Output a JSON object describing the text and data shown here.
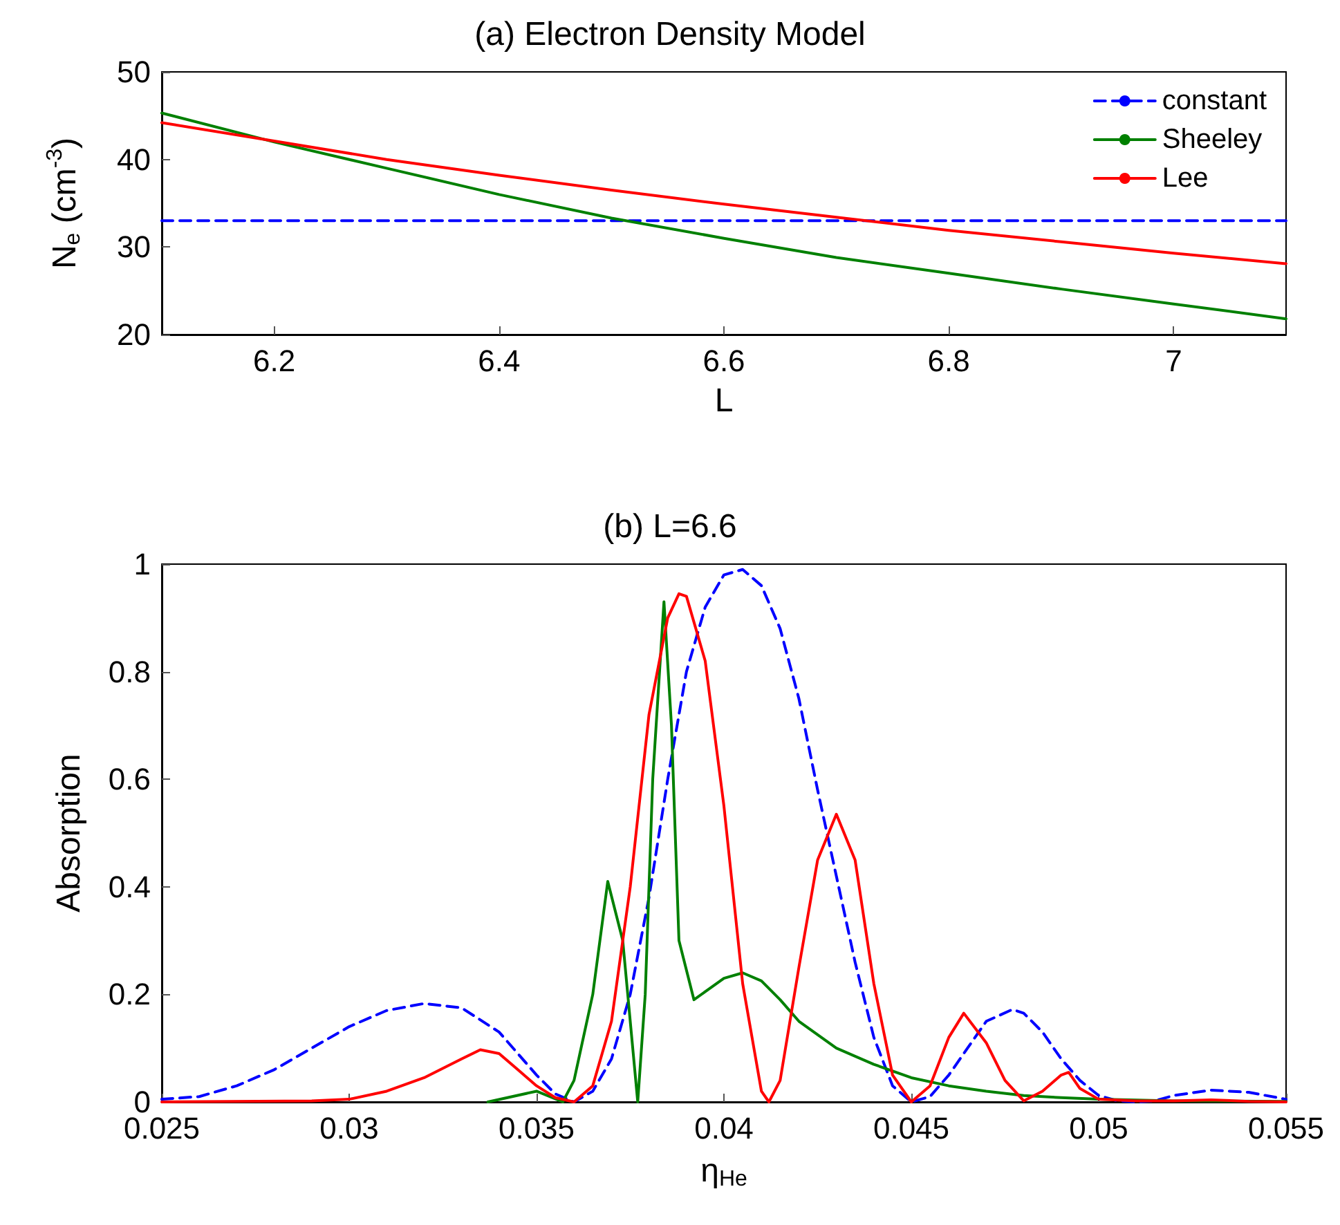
{
  "chart_data": [
    {
      "type": "line",
      "title": "(a) Electron Density Model",
      "xlabel": "L",
      "ylabel": "N$_{e}$ (cm$^{-3}$)",
      "x": [
        6.1,
        6.2,
        6.3,
        6.4,
        6.5,
        6.6,
        6.7,
        6.8,
        6.9,
        7.0,
        7.1
      ],
      "series": [
        {
          "name": "constant",
          "color": "#0000ff",
          "line_style": "dashed",
          "values": [
            33,
            33,
            33,
            33,
            33,
            33,
            33,
            33,
            33,
            33,
            33
          ]
        },
        {
          "name": "Sheeley",
          "color": "#008000",
          "values": [
            45.3,
            42.0,
            39.0,
            36.0,
            33.3,
            31.0,
            28.8,
            27.0,
            25.2,
            23.5,
            21.8
          ]
        },
        {
          "name": "Lee",
          "color": "#ff0000",
          "values": [
            44.2,
            42.1,
            40.0,
            38.2,
            36.5,
            34.9,
            33.4,
            31.9,
            30.6,
            29.3,
            28.1
          ]
        }
      ],
      "xlim": [
        6.1,
        7.1
      ],
      "xticks": [
        6.2,
        6.4,
        6.6,
        6.8,
        7
      ],
      "ylim": [
        20,
        50
      ],
      "yticks": [
        20,
        30,
        40,
        50
      ],
      "legend": "top right",
      "marker": "none",
      "grid": false
    },
    {
      "type": "line",
      "title": "(b) L=6.6",
      "xlabel": "η$_{He}$",
      "ylabel": "Absorption",
      "series": [
        {
          "color": "#0000ff",
          "line_style": "dashed",
          "x": [
            0.025,
            0.026,
            0.027,
            0.028,
            0.029,
            0.03,
            0.031,
            0.032,
            0.033,
            0.034,
            0.035,
            0.0355,
            0.036,
            0.0365,
            0.037,
            0.0375,
            0.038,
            0.0385,
            0.039,
            0.0395,
            0.04,
            0.0405,
            0.041,
            0.0415,
            0.042,
            0.0425,
            0.043,
            0.0435,
            0.044,
            0.0445,
            0.045,
            0.0455,
            0.046,
            0.0465,
            0.047,
            0.0477,
            0.048,
            0.0485,
            0.049,
            0.0495,
            0.05,
            0.0505,
            0.051,
            0.0515,
            0.052,
            0.053,
            0.054,
            0.055
          ],
          "values": [
            0.005,
            0.01,
            0.03,
            0.06,
            0.1,
            0.14,
            0.17,
            0.183,
            0.175,
            0.13,
            0.05,
            0.015,
            0.0,
            0.02,
            0.08,
            0.2,
            0.38,
            0.6,
            0.8,
            0.92,
            0.98,
            0.99,
            0.96,
            0.88,
            0.75,
            0.58,
            0.42,
            0.26,
            0.12,
            0.03,
            0.0,
            0.01,
            0.05,
            0.1,
            0.15,
            0.172,
            0.165,
            0.13,
            0.08,
            0.04,
            0.012,
            0.002,
            0.0,
            0.002,
            0.012,
            0.022,
            0.018,
            0.005
          ]
        },
        {
          "color": "#008000",
          "x": [
            0.0337,
            0.035,
            0.0357,
            0.036,
            0.0365,
            0.0369,
            0.0373,
            0.0377,
            0.0379,
            0.0381,
            0.0384,
            0.0386,
            0.0388,
            0.0392,
            0.0396,
            0.04,
            0.0405,
            0.041,
            0.0415,
            0.042,
            0.043,
            0.044,
            0.045,
            0.046,
            0.047,
            0.048,
            0.049,
            0.05,
            0.052,
            0.055
          ],
          "values": [
            0.0,
            0.02,
            0.0,
            0.04,
            0.2,
            0.41,
            0.3,
            0.0,
            0.2,
            0.6,
            0.93,
            0.7,
            0.3,
            0.19,
            0.21,
            0.23,
            0.24,
            0.225,
            0.19,
            0.15,
            0.1,
            0.07,
            0.045,
            0.03,
            0.02,
            0.012,
            0.008,
            0.005,
            0.002,
            0.001
          ]
        },
        {
          "color": "#ff0000",
          "x": [
            0.025,
            0.029,
            0.03,
            0.031,
            0.032,
            0.033,
            0.0335,
            0.034,
            0.0345,
            0.035,
            0.0355,
            0.036,
            0.0365,
            0.037,
            0.0375,
            0.038,
            0.0385,
            0.0388,
            0.039,
            0.0395,
            0.04,
            0.0405,
            0.041,
            0.0412,
            0.0415,
            0.042,
            0.0425,
            0.043,
            0.0435,
            0.044,
            0.0445,
            0.045,
            0.0455,
            0.046,
            0.0464,
            0.047,
            0.0475,
            0.048,
            0.0485,
            0.049,
            0.0492,
            0.0495,
            0.05,
            0.051,
            0.052,
            0.053,
            0.054,
            0.055
          ],
          "values": [
            0.0,
            0.002,
            0.005,
            0.02,
            0.045,
            0.08,
            0.097,
            0.09,
            0.06,
            0.03,
            0.008,
            0.0,
            0.03,
            0.15,
            0.4,
            0.72,
            0.9,
            0.945,
            0.94,
            0.82,
            0.55,
            0.22,
            0.02,
            0.0,
            0.04,
            0.25,
            0.45,
            0.535,
            0.45,
            0.22,
            0.05,
            0.0,
            0.03,
            0.12,
            0.165,
            0.11,
            0.04,
            0.002,
            0.02,
            0.05,
            0.055,
            0.025,
            0.005,
            0.002,
            0.002,
            0.004,
            0.001,
            0.0
          ]
        }
      ],
      "xlim": [
        0.025,
        0.055
      ],
      "xticks": [
        0.025,
        0.03,
        0.035,
        0.04,
        0.045,
        0.05,
        0.055
      ],
      "ylim": [
        0,
        1
      ],
      "yticks": [
        0,
        0.2,
        0.4,
        0.6,
        0.8,
        1
      ],
      "marker": "none",
      "grid": false
    }
  ]
}
